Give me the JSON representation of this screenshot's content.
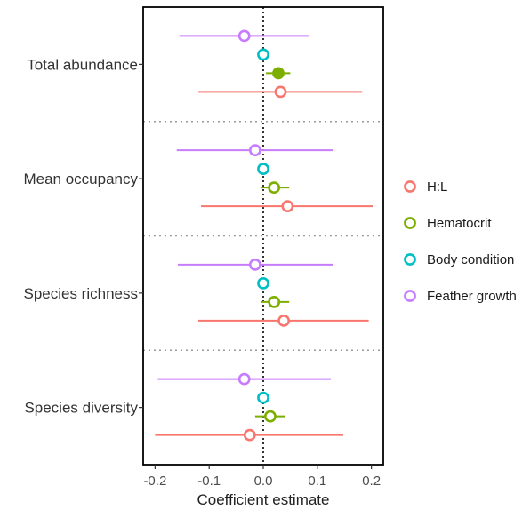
{
  "chart_data": {
    "type": "forest",
    "xlabel": "Coefficient estimate",
    "xlim": [
      -0.222,
      0.222
    ],
    "xticks": [
      -0.2,
      -0.1,
      0.0,
      0.1,
      0.2
    ],
    "xtick_labels": [
      "-0.2",
      "-0.1",
      "0.0",
      "0.1",
      "0.2"
    ],
    "reference_line": 0,
    "categories": [
      "Total abundance",
      "Mean occupancy",
      "Species richness",
      "Species diversity"
    ],
    "series": [
      {
        "name": "Feather growth",
        "color": "#c77cff",
        "estimates": [
          -0.035,
          -0.015,
          -0.015,
          -0.035
        ],
        "lower": [
          -0.155,
          -0.16,
          -0.158,
          -0.195
        ],
        "upper": [
          0.085,
          0.13,
          0.13,
          0.125
        ],
        "filled": [
          false,
          false,
          false,
          false
        ]
      },
      {
        "name": "Body condition",
        "color": "#00bfc4",
        "estimates": [
          0.0,
          0.0,
          0.0,
          0.0
        ],
        "lower": [
          0.0,
          0.0,
          0.0,
          0.0
        ],
        "upper": [
          0.0,
          0.0,
          0.0,
          0.0
        ],
        "filled": [
          false,
          false,
          false,
          false
        ]
      },
      {
        "name": "Hematocrit",
        "color": "#7cae00",
        "estimates": [
          0.028,
          0.02,
          0.02,
          0.013
        ],
        "lower": [
          0.005,
          -0.005,
          -0.005,
          -0.015
        ],
        "upper": [
          0.05,
          0.048,
          0.048,
          0.04
        ],
        "filled": [
          true,
          false,
          false,
          false
        ]
      },
      {
        "name": "H:L",
        "color": "#f8766d",
        "estimates": [
          0.032,
          0.045,
          0.038,
          -0.025
        ],
        "lower": [
          -0.12,
          -0.115,
          -0.12,
          -0.2
        ],
        "upper": [
          0.183,
          0.203,
          0.195,
          0.148
        ],
        "filled": [
          false,
          false,
          false,
          false
        ]
      }
    ],
    "legend": {
      "position": "right",
      "entries": [
        "H:L",
        "Hematocrit",
        "Body condition",
        "Feather growth"
      ]
    },
    "grid": false
  }
}
